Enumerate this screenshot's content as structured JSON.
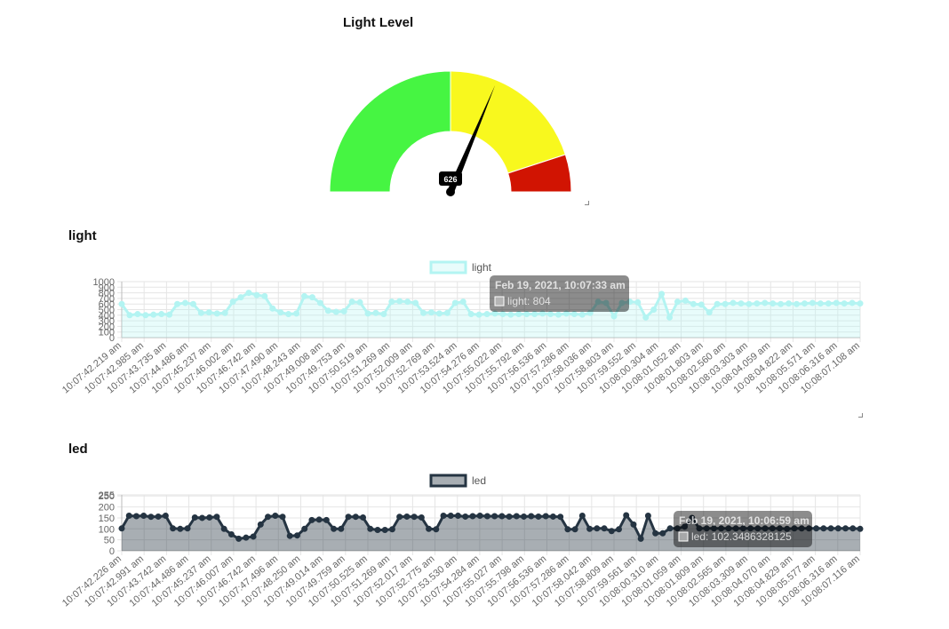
{
  "gauge": {
    "title": "Light Level",
    "value": 626,
    "value_label": "626",
    "min": 0,
    "max": 1000,
    "bands": [
      {
        "from": 0,
        "to": 500,
        "color": "#46f542"
      },
      {
        "from": 500,
        "to": 900,
        "color": "#f8f81e"
      },
      {
        "from": 900,
        "to": 1000,
        "color": "#d11402"
      }
    ]
  },
  "chart_data": [
    {
      "type": "area",
      "title": "light",
      "legend": "top",
      "ylim": [
        0,
        1000
      ],
      "yticks": [
        "0",
        "100",
        "200",
        "300",
        "400",
        "500",
        "600",
        "700",
        "800",
        "900",
        "1000"
      ],
      "x_labels": [
        "10:07:42.219 am",
        "10:07:42.985 am",
        "10:07:43.735 am",
        "10:07:44.486 am",
        "10:07:45.237 am",
        "10:07:46.002 am",
        "10:07:46.742 am",
        "10:07:47.490 am",
        "10:07:48.243 am",
        "10:07:49.008 am",
        "10:07:49.753 am",
        "10:07:50.519 am",
        "10:07:51.269 am",
        "10:07:52.009 am",
        "10:07:52.769 am",
        "10:07:53.524 am",
        "10:07:54.276 am",
        "10:07:55.022 am",
        "10:07:55.792 am",
        "10:07:56.536 am",
        "10:07:57.286 am",
        "10:07:58.036 am",
        "10:07:58.803 am",
        "10:07:59.552 am",
        "10:08:00.304 am",
        "10:08:01.052 am",
        "10:08:01.803 am",
        "10:08:02.560 am",
        "10:08:03.303 am",
        "10:08:04.059 am",
        "10:08:04.822 am",
        "10:08:05.571 am",
        "10:08:06.316 am",
        "10:08:07.108 am"
      ],
      "series": [
        {
          "name": "light",
          "color": "#b3f4f2",
          "fill": "rgba(179,244,242,0.3)",
          "values": [
            600,
            400,
            420,
            400,
            410,
            420,
            410,
            600,
            620,
            600,
            440,
            450,
            430,
            440,
            640,
            720,
            800,
            760,
            740,
            520,
            450,
            420,
            430,
            740,
            720,
            620,
            480,
            460,
            470,
            640,
            630,
            430,
            440,
            420,
            640,
            650,
            640,
            620,
            440,
            450,
            430,
            440,
            620,
            640,
            420,
            410,
            420,
            430,
            420,
            410,
            420,
            420,
            420,
            430,
            420,
            410,
            430,
            420,
            410,
            440,
            640,
            620,
            380,
            620,
            640,
            630,
            360,
            500,
            780,
            360,
            640,
            660,
            600,
            590,
            450,
            600,
            600,
            620,
            610,
            600,
            610,
            620,
            610,
            600,
            610,
            600,
            610,
            620,
            610,
            610,
            620,
            610,
            620,
            610
          ]
        }
      ],
      "tooltip": {
        "title": "Feb 19, 2021, 10:07:33 am",
        "body": "light: 804"
      }
    },
    {
      "type": "area",
      "title": "led",
      "legend": "top",
      "ylim": [
        0,
        255
      ],
      "yticks": [
        "0",
        "50",
        "100",
        "150",
        "200",
        "250",
        "255"
      ],
      "x_labels": [
        "10:07:42.226 am",
        "10:07:42.991 am",
        "10:07:43.742 am",
        "10:07:44.486 am",
        "10:07:45.237 am",
        "10:07:46.007 am",
        "10:07:46.742 am",
        "10:07:47.496 am",
        "10:07:48.250 am",
        "10:07:49.014 am",
        "10:07:49.759 am",
        "10:07:50.525 am",
        "10:07:51.269 am",
        "10:07:52.017 am",
        "10:07:52.775 am",
        "10:07:53.530 am",
        "10:07:54.284 am",
        "10:07:55.027 am",
        "10:07:55.798 am",
        "10:07:56.536 am",
        "10:07:57.286 am",
        "10:07:58.042 am",
        "10:07:58.809 am",
        "10:07:59.561 am",
        "10:08:00.310 am",
        "10:08:01.059 am",
        "10:08:01.809 am",
        "10:08:02.565 am",
        "10:08:03.309 am",
        "10:08:04.070 am",
        "10:08:04.829 am",
        "10:08:05.577 am",
        "10:08:06.316 am",
        "10:08:07.116 am"
      ],
      "series": [
        {
          "name": "led",
          "color": "#253442",
          "fill": "rgba(37,52,66,0.4)",
          "values": [
            102,
            160,
            158,
            160,
            155,
            156,
            160,
            102,
            100,
            102,
            152,
            150,
            152,
            155,
            100,
            75,
            55,
            60,
            65,
            120,
            155,
            160,
            155,
            68,
            70,
            100,
            140,
            142,
            140,
            100,
            100,
            155,
            155,
            152,
            100,
            95,
            95,
            98,
            155,
            156,
            155,
            152,
            100,
            98,
            160,
            160,
            160,
            156,
            158,
            160,
            158,
            158,
            158,
            156,
            158,
            156,
            158,
            156,
            158,
            156,
            155,
            98,
            98,
            160,
            100,
            102,
            102,
            90,
            98,
            162,
            120,
            55,
            160,
            80,
            80,
            102,
            102,
            110,
            150,
            102,
            102,
            102,
            102,
            102,
            102,
            102,
            102,
            102,
            102,
            102,
            102,
            100,
            102,
            102,
            102,
            102,
            102,
            102,
            102,
            102,
            102,
            100
          ]
        }
      ],
      "tooltip": {
        "title": "Feb 19, 2021, 10:06:59 am",
        "body": "led: 102.3486328125"
      }
    }
  ]
}
